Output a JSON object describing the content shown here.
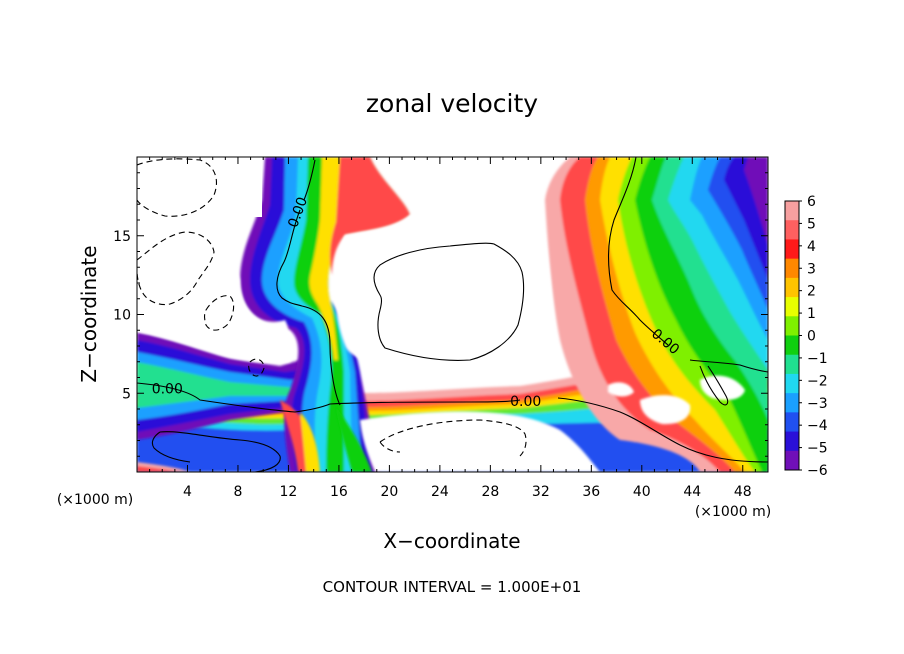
{
  "chart_data": {
    "type": "heatmap",
    "title": "zonal velocity",
    "xlabel": "X−coordinate",
    "ylabel": "Z−coordinate",
    "x_unit_label": "(×1000 m)",
    "x_unit_label_right": "(×1000 m)",
    "footer": "CONTOUR INTERVAL = 1.000E+01",
    "xlim": [
      0,
      50
    ],
    "ylim": [
      0,
      20
    ],
    "x_ticks": [
      4,
      8,
      12,
      16,
      20,
      24,
      28,
      32,
      36,
      40,
      44,
      48
    ],
    "y_ticks": [
      5,
      10,
      15
    ],
    "colorbar": {
      "values": [
        6,
        5,
        4,
        3,
        2,
        1,
        0,
        -1,
        -2,
        -3,
        -4,
        -5,
        -6
      ],
      "labels": [
        "6",
        "5",
        "4",
        "3",
        "2",
        "1",
        "0",
        "−1",
        "−2",
        "−3",
        "−4",
        "−5",
        "−6"
      ],
      "colors": [
        "#f7a0a0",
        "#ff6060",
        "#ff1a1a",
        "#ff8800",
        "#ffc400",
        "#e8ff00",
        "#7ff000",
        "#10d010",
        "#20e090",
        "#20d8f0",
        "#1aa0ff",
        "#2050f0",
        "#2a10d8",
        "#7010b8"
      ]
    },
    "contour_labels": [
      {
        "text": "0.00",
        "x": 12.7,
        "z": 16.5
      },
      {
        "text": "0.00",
        "x": 2.4,
        "z": 5.3
      },
      {
        "text": "0.00",
        "x": 30.8,
        "z": 4.5
      },
      {
        "text": "0.00",
        "x": 41.9,
        "z": 8.3
      }
    ]
  }
}
